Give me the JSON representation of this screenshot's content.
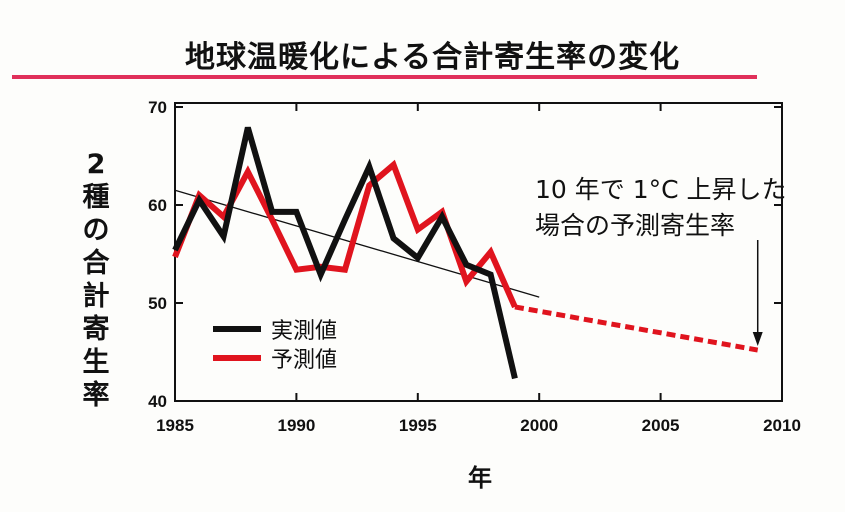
{
  "title": "地球温暖化による合計寄生率の変化",
  "annotation": {
    "line1": "10 年で 1°C 上昇した",
    "line2": "場合の予測寄生率"
  },
  "colors": {
    "measured": "#111111",
    "predicted": "#e0141e",
    "rule": "#e0305a"
  },
  "chart_data": {
    "type": "line",
    "title": "地球温暖化による合計寄生率の変化",
    "xlabel": "年",
    "ylabel": [
      "2",
      "種",
      "の",
      "合",
      "計",
      "寄",
      "生",
      "率"
    ],
    "xlim": [
      1985,
      2010
    ],
    "ylim": [
      40,
      70
    ],
    "xticks": [
      1985,
      1990,
      1995,
      2000,
      2005,
      2010
    ],
    "yticks": [
      40,
      50,
      60,
      70
    ],
    "legend": {
      "position": "bottom-left",
      "entries": [
        "実測値",
        "予測値"
      ]
    },
    "series": [
      {
        "name": "実測値",
        "x": [
          1985,
          1986,
          1987,
          1988,
          1989,
          1990,
          1991,
          1992,
          1993,
          1994,
          1995,
          1996,
          1997,
          1998,
          1999
        ],
        "values": [
          55.4,
          60.5,
          56.8,
          67.9,
          59.3,
          59.3,
          52.9,
          58.5,
          63.9,
          56.6,
          54.6,
          58.8,
          53.9,
          52.9,
          42.3
        ]
      },
      {
        "name": "予測値",
        "x": [
          1985,
          1986,
          1987,
          1988,
          1989,
          1990,
          1991,
          1992,
          1993,
          1994,
          1995,
          1996,
          1997,
          1998,
          1999
        ],
        "values": [
          54.7,
          61.0,
          58.8,
          63.4,
          58.5,
          53.4,
          53.7,
          53.4,
          62.0,
          64.1,
          57.5,
          59.3,
          52.2,
          55.2,
          49.6
        ]
      },
      {
        "name": "予測値 (1°C/10年)",
        "style": "dashed",
        "x": [
          1999,
          2009
        ],
        "values": [
          49.6,
          45.2
        ]
      },
      {
        "name": "trend",
        "x": [
          1985,
          2000
        ],
        "values": [
          61.5,
          50.6
        ]
      }
    ]
  }
}
